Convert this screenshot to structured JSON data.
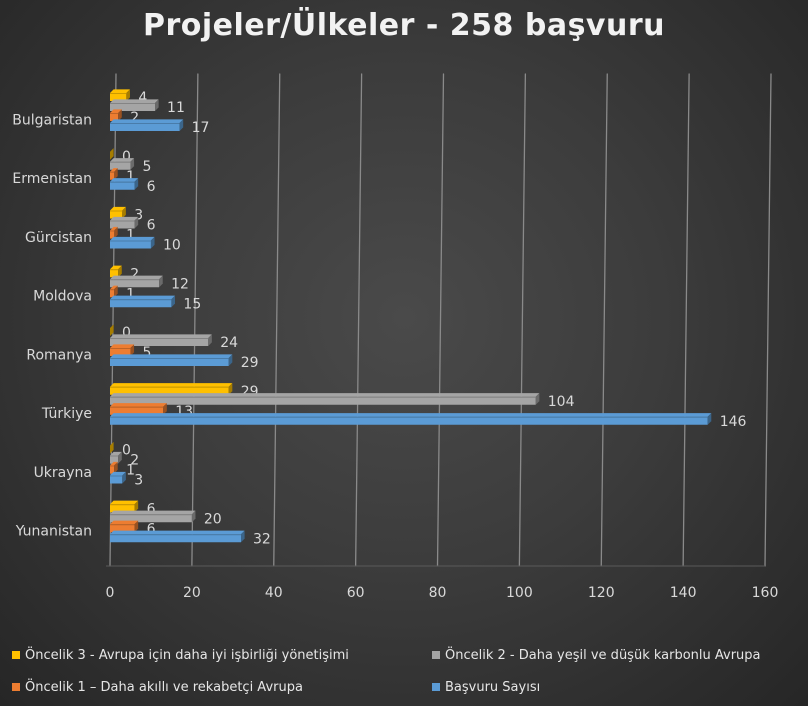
{
  "chart_data": {
    "type": "bar",
    "orientation": "horizontal",
    "title": "Projeler/Ülkeler - 258 başvuru",
    "categories": [
      "Bulgaristan",
      "Ermenistan",
      "Gürcistan",
      "Moldova",
      "Romanya",
      "Türkiye",
      "Ukrayna",
      "Yunanistan"
    ],
    "series": [
      {
        "name": "Öncelik 3 - Avrupa için daha iyi işbirliği yönetişimi",
        "color": "#ffc000",
        "values": [
          4,
          0,
          3,
          2,
          0,
          29,
          0,
          6
        ]
      },
      {
        "name": "Öncelik 2 - Daha yeşil ve düşük karbonlu Avrupa",
        "color": "#a5a5a5",
        "values": [
          11,
          5,
          6,
          12,
          24,
          104,
          2,
          20
        ]
      },
      {
        "name": "Öncelik 1 – Daha akıllı ve rekabetçi Avrupa",
        "color": "#ed7d31",
        "values": [
          2,
          1,
          1,
          1,
          5,
          13,
          1,
          6
        ]
      },
      {
        "name": "Başvuru Sayısı",
        "color": "#5b9bd5",
        "values": [
          17,
          6,
          10,
          15,
          29,
          146,
          3,
          32
        ]
      }
    ],
    "xlim": [
      0,
      160
    ],
    "xticks": [
      0,
      20,
      40,
      60,
      80,
      100,
      120,
      140,
      160
    ],
    "grid": true,
    "legend_position": "bottom",
    "data_labels": true
  }
}
